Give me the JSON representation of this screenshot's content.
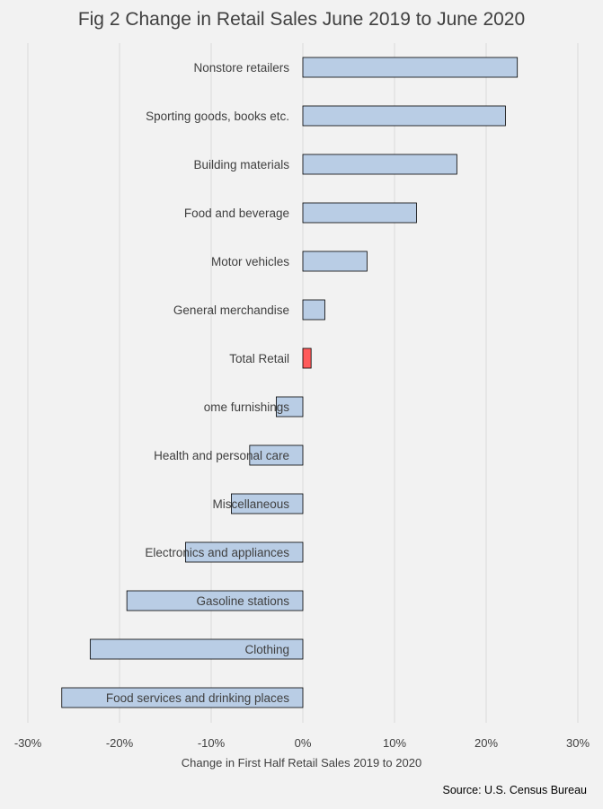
{
  "title": "Fig 2 Change in Retail Sales June 2019 to June 2020",
  "source": "Source: U.S. Census Bureau",
  "chart_data": {
    "type": "bar",
    "orientation": "horizontal",
    "title": "Fig 2 Change in Retail Sales June 2019 to June 2020",
    "xlabel": "Change in First Half Retail Sales 2019 to 2020",
    "ylabel": "",
    "xlim": [
      -0.3,
      0.3
    ],
    "x_ticks": [
      -0.3,
      -0.2,
      -0.1,
      0,
      0.1,
      0.2,
      0.3
    ],
    "x_tick_labels": [
      "-30%",
      "-20%",
      "-10%",
      "0%",
      "10%",
      "20%",
      "30%"
    ],
    "grid": "vertical",
    "categories": [
      "Nonstore retailers",
      "Sporting goods, books etc.",
      "Building materials",
      "Food and beverage",
      "Motor vehicles",
      "General merchandise",
      "Total Retail",
      "ome furnishings",
      "Health and personal care",
      "Miscellaneous",
      "Electronics and appliances",
      "Gasoline stations",
      "Clothing",
      "Food services and drinking places"
    ],
    "values": [
      0.234,
      0.221,
      0.168,
      0.124,
      0.07,
      0.024,
      0.009,
      -0.029,
      -0.058,
      -0.078,
      -0.128,
      -0.192,
      -0.232,
      -0.263
    ],
    "highlight_category": "Total Retail",
    "colors": {
      "bar": "#b9cde5",
      "highlight": "#ff5b5b",
      "bar_outline": "#000000",
      "grid": "#d9d9d9",
      "background": "#f2f2f2",
      "text": "#404040"
    }
  }
}
